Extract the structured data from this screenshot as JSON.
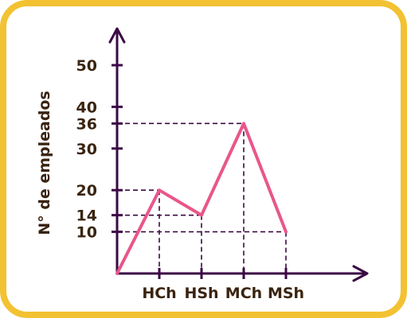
{
  "colors": {
    "frame": "#F2C232",
    "axis": "#3B0A45",
    "line": "#E8578A",
    "text": "#3A2410",
    "background": "#ffffff"
  },
  "chart_data": {
    "type": "line",
    "ylabel": "N° de empleados",
    "xlabel": "",
    "categories": [
      "HCh",
      "HSh",
      "MCh",
      "MSh"
    ],
    "yticks": [
      10,
      14,
      20,
      30,
      36,
      40,
      50
    ],
    "ytick_labels": [
      "10",
      "14",
      "20",
      "30",
      "36",
      "40",
      "50"
    ],
    "origin": {
      "x": 0,
      "y": 0
    },
    "values": [
      20,
      14,
      36,
      10
    ],
    "guides": [
      20,
      14,
      36,
      10
    ],
    "ylim": [
      0,
      50
    ],
    "grid": false
  }
}
